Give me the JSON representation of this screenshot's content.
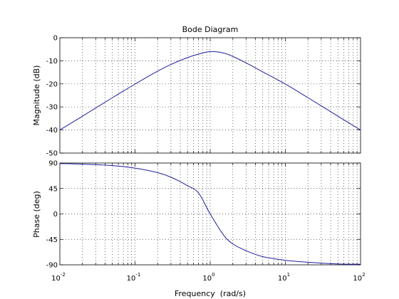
{
  "chart_data": [
    {
      "type": "line",
      "title": "Bode Diagram",
      "ylabel": "Magnitude (dB)",
      "xlabel": "",
      "x_scale": "log",
      "xlim": [
        0.01,
        100
      ],
      "ylim": [
        -50,
        0
      ],
      "yticks": [
        0,
        -10,
        -20,
        -30,
        -40,
        -50
      ],
      "grid": true,
      "series": [
        {
          "color": "#1f1f9c",
          "x": [
            0.01,
            0.02,
            0.05,
            0.1,
            0.2,
            0.3,
            0.5,
            0.7,
            1,
            1.5,
            2,
            3,
            5,
            10,
            20,
            50,
            100
          ],
          "values": [
            -40,
            -34,
            -26,
            -20.1,
            -14.5,
            -11.6,
            -8.6,
            -7.1,
            -6.0,
            -6.6,
            -8.1,
            -10.9,
            -14.8,
            -20.1,
            -26,
            -34,
            -40
          ]
        }
      ]
    },
    {
      "type": "line",
      "title": "",
      "ylabel": "Phase (deg)",
      "xlabel": "Frequency  (rad/s)",
      "x_scale": "log",
      "xlim": [
        0.01,
        100
      ],
      "ylim": [
        -90,
        90
      ],
      "yticks": [
        90,
        45,
        0,
        -45,
        -90
      ],
      "xticks": [
        "10^-2",
        "10^-1",
        "10^0",
        "10^1",
        "10^2"
      ],
      "grid": true,
      "series": [
        {
          "color": "#1f1f9c",
          "x": [
            0.01,
            0.02,
            0.05,
            0.1,
            0.2,
            0.3,
            0.5,
            0.7,
            1,
            1.5,
            2,
            3,
            5,
            10,
            20,
            50,
            100
          ],
          "values": [
            89,
            88,
            85.5,
            81,
            73,
            65,
            50,
            37,
            0,
            -37,
            -53,
            -65,
            -75.5,
            -82,
            -85.5,
            -88.5,
            -89
          ]
        }
      ]
    }
  ]
}
